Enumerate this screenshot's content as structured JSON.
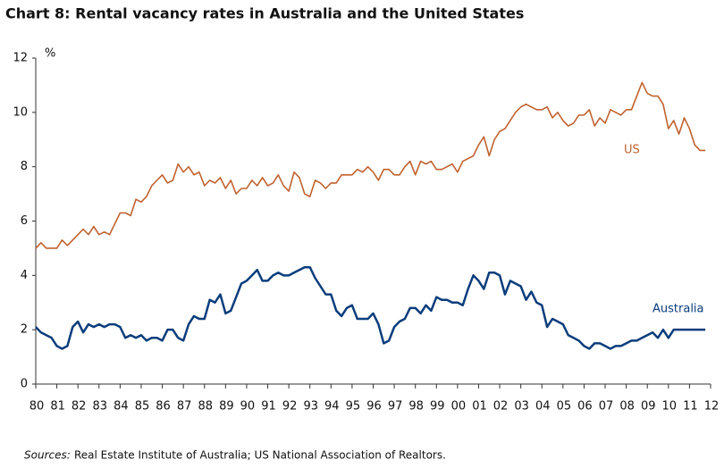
{
  "chart_data": {
    "type": "line",
    "title": "Chart 8: Rental vacancy rates in Australia and the United States",
    "y_label": "%",
    "source_label": "Sources:",
    "source_text": "Real Estate Institute of Australia; US National Association of Realtors.",
    "xlim": [
      1980,
      2012
    ],
    "xticks": [
      {
        "value": 1980,
        "label": "80"
      },
      {
        "value": 1981,
        "label": "81"
      },
      {
        "value": 1982,
        "label": "82"
      },
      {
        "value": 1983,
        "label": "83"
      },
      {
        "value": 1984,
        "label": "84"
      },
      {
        "value": 1985,
        "label": "85"
      },
      {
        "value": 1986,
        "label": "86"
      },
      {
        "value": 1987,
        "label": "87"
      },
      {
        "value": 1988,
        "label": "88"
      },
      {
        "value": 1989,
        "label": "89"
      },
      {
        "value": 1990,
        "label": "90"
      },
      {
        "value": 1991,
        "label": "91"
      },
      {
        "value": 1992,
        "label": "92"
      },
      {
        "value": 1993,
        "label": "93"
      },
      {
        "value": 1994,
        "label": "94"
      },
      {
        "value": 1995,
        "label": "95"
      },
      {
        "value": 1996,
        "label": "96"
      },
      {
        "value": 1997,
        "label": "97"
      },
      {
        "value": 1998,
        "label": "98"
      },
      {
        "value": 1999,
        "label": "99"
      },
      {
        "value": 2000,
        "label": "00"
      },
      {
        "value": 2001,
        "label": "01"
      },
      {
        "value": 2002,
        "label": "02"
      },
      {
        "value": 2003,
        "label": "03"
      },
      {
        "value": 2004,
        "label": "04"
      },
      {
        "value": 2005,
        "label": "05"
      },
      {
        "value": 2006,
        "label": "06"
      },
      {
        "value": 2007,
        "label": "07"
      },
      {
        "value": 2008,
        "label": "08"
      },
      {
        "value": 2009,
        "label": "09"
      },
      {
        "value": 2010,
        "label": "10"
      },
      {
        "value": 2011,
        "label": "11"
      },
      {
        "value": 2012,
        "label": "12"
      }
    ],
    "ylim": [
      0,
      12
    ],
    "yticks": [
      0,
      2,
      4,
      6,
      8,
      10,
      12
    ],
    "grid": false,
    "x": [
      1980,
      1980.25,
      1980.5,
      1980.75,
      1981,
      1981.25,
      1981.5,
      1981.75,
      1982,
      1982.25,
      1982.5,
      1982.75,
      1983,
      1983.25,
      1983.5,
      1983.75,
      1984,
      1984.25,
      1984.5,
      1984.75,
      1985,
      1985.25,
      1985.5,
      1985.75,
      1986,
      1986.25,
      1986.5,
      1986.75,
      1987,
      1987.25,
      1987.5,
      1987.75,
      1988,
      1988.25,
      1988.5,
      1988.75,
      1989,
      1989.25,
      1989.5,
      1989.75,
      1990,
      1990.25,
      1990.5,
      1990.75,
      1991,
      1991.25,
      1991.5,
      1991.75,
      1992,
      1992.25,
      1992.5,
      1992.75,
      1993,
      1993.25,
      1993.5,
      1993.75,
      1994,
      1994.25,
      1994.5,
      1994.75,
      1995,
      1995.25,
      1995.5,
      1995.75,
      1996,
      1996.25,
      1996.5,
      1996.75,
      1997,
      1997.25,
      1997.5,
      1997.75,
      1998,
      1998.25,
      1998.5,
      1998.75,
      1999,
      1999.25,
      1999.5,
      1999.75,
      2000,
      2000.25,
      2000.5,
      2000.75,
      2001,
      2001.25,
      2001.5,
      2001.75,
      2002,
      2002.25,
      2002.5,
      2002.75,
      2003,
      2003.25,
      2003.5,
      2003.75,
      2004,
      2004.25,
      2004.5,
      2004.75,
      2005,
      2005.25,
      2005.5,
      2005.75,
      2006,
      2006.25,
      2006.5,
      2006.75,
      2007,
      2007.25,
      2007.5,
      2007.75,
      2008,
      2008.25,
      2008.5,
      2008.75,
      2009,
      2009.25,
      2009.5,
      2009.75,
      2010,
      2010.25,
      2010.5,
      2010.75,
      2011,
      2011.25,
      2011.5,
      2011.75
    ],
    "series": [
      {
        "name": "US",
        "color": "#c0622f",
        "values": [
          5.0,
          5.2,
          5.0,
          5.0,
          5.0,
          5.3,
          5.1,
          5.3,
          5.5,
          5.7,
          5.5,
          5.8,
          5.5,
          5.6,
          5.5,
          5.9,
          6.3,
          6.3,
          6.2,
          6.8,
          6.7,
          6.9,
          7.3,
          7.5,
          7.7,
          7.4,
          7.5,
          8.1,
          7.8,
          8.0,
          7.7,
          7.8,
          7.3,
          7.5,
          7.4,
          7.6,
          7.2,
          7.5,
          7.0,
          7.2,
          7.2,
          7.5,
          7.3,
          7.6,
          7.3,
          7.4,
          7.7,
          7.3,
          7.1,
          7.8,
          7.6,
          7.0,
          6.9,
          7.5,
          7.4,
          7.2,
          7.4,
          7.4,
          7.7,
          7.7,
          7.7,
          7.9,
          7.8,
          8.0,
          7.8,
          7.5,
          7.9,
          7.9,
          7.7,
          7.7,
          8.0,
          8.2,
          7.7,
          8.2,
          8.1,
          8.2,
          7.9,
          7.9,
          8.0,
          8.1,
          7.8,
          8.2,
          8.3,
          8.4,
          8.8,
          9.1,
          8.4,
          9.0,
          9.3,
          9.4,
          9.7,
          10.0,
          10.2,
          10.3,
          10.2,
          10.1,
          10.1,
          10.2,
          9.8,
          10.0,
          9.7,
          9.5,
          9.6,
          9.9,
          9.9,
          10.1,
          9.5,
          9.8,
          9.6,
          10.1,
          10.0,
          9.9,
          10.1,
          10.1,
          10.6,
          11.1,
          10.7,
          10.6,
          10.6,
          10.3,
          9.4,
          9.7,
          9.2,
          9.8,
          9.4,
          8.8,
          8.6,
          8.6
        ]
      },
      {
        "name": "Australia",
        "color": "#0a3d7c",
        "values": [
          2.1,
          1.9,
          1.8,
          1.7,
          1.4,
          1.3,
          1.4,
          2.1,
          2.3,
          1.9,
          2.2,
          2.1,
          2.2,
          2.1,
          2.2,
          2.2,
          2.1,
          1.7,
          1.8,
          1.7,
          1.8,
          1.6,
          1.7,
          1.7,
          1.6,
          2.0,
          2.0,
          1.7,
          1.6,
          2.2,
          2.5,
          2.4,
          2.4,
          3.1,
          3.0,
          3.3,
          2.6,
          2.7,
          3.2,
          3.7,
          3.8,
          4.0,
          4.2,
          3.8,
          3.8,
          4.0,
          4.1,
          4.0,
          4.0,
          4.1,
          4.2,
          4.3,
          4.3,
          3.9,
          3.6,
          3.3,
          3.3,
          2.7,
          2.5,
          2.8,
          2.9,
          2.4,
          2.4,
          2.4,
          2.6,
          2.2,
          1.5,
          1.6,
          2.1,
          2.3,
          2.4,
          2.8,
          2.8,
          2.6,
          2.9,
          2.7,
          3.2,
          3.1,
          3.1,
          3.0,
          3.0,
          2.9,
          3.5,
          4.0,
          3.8,
          3.5,
          4.1,
          4.1,
          4.0,
          3.3,
          3.8,
          3.7,
          3.6,
          3.1,
          3.4,
          3.0,
          2.9,
          2.1,
          2.4,
          2.3,
          2.2,
          1.8,
          1.7,
          1.6,
          1.4,
          1.3,
          1.5,
          1.5,
          1.4,
          1.3,
          1.4,
          1.4,
          1.5,
          1.6,
          1.6,
          1.7,
          1.8,
          1.9,
          1.7,
          2.0,
          1.7,
          2.0,
          2.0,
          2.0,
          2.0,
          2.0,
          2.0,
          2.0
        ]
      }
    ]
  }
}
